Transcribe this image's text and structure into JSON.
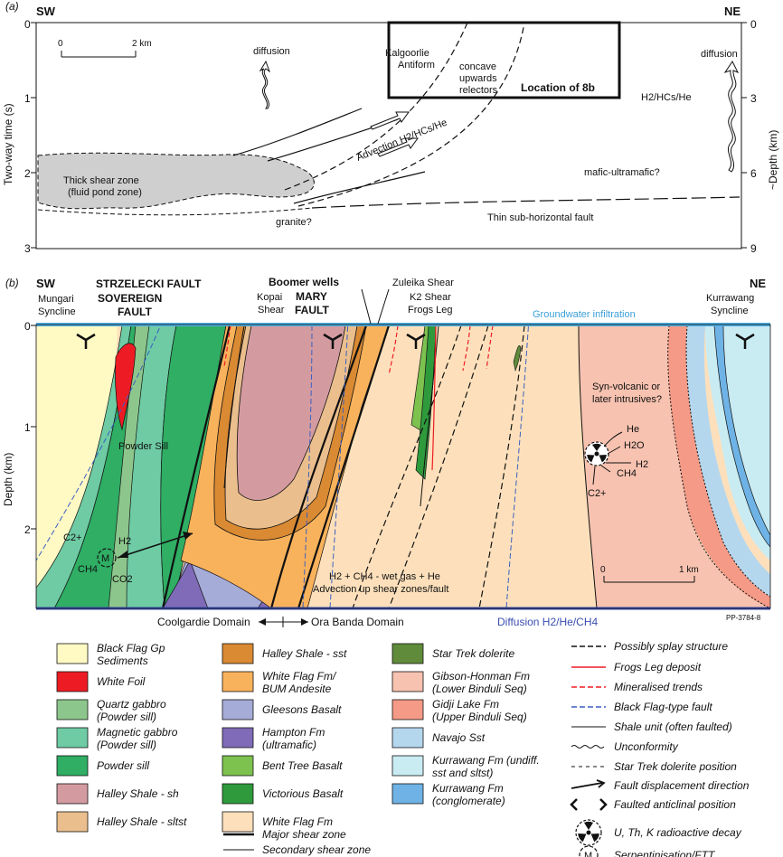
{
  "panel_a": {
    "label": "(a)",
    "sw": "SW",
    "ne": "NE",
    "left_axis_title": "Two-way time (s)",
    "right_axis_title": "~Depth (km)",
    "left_ticks": [
      "0",
      "1",
      "2",
      "3"
    ],
    "right_ticks": [
      "0",
      "3",
      "6",
      "9"
    ],
    "scale_0": "0",
    "scale_2": "2 km",
    "diffusion_left": "diffusion",
    "diffusion_right": "diffusion",
    "gas_right": "H2/HCs/He",
    "antiform_1": "Kalgoorlie",
    "antiform_2": "Antiform",
    "concave_1": "concave",
    "concave_2": "upwards",
    "concave_3": "relectors",
    "location": "Location of 8b",
    "advection": "Advection H2/HCs/He",
    "shear_1": "Thick shear zone",
    "shear_2": "(fluid pond zone)",
    "mafic": "mafic-ultramafic?",
    "granite": "granite?",
    "fault": "Thin sub-horizontal fault"
  },
  "panel_b": {
    "label": "(b)",
    "sw": "SW",
    "ne": "NE",
    "strzelecki": "STRZELECKI FAULT",
    "sovereign_1": "SOVEREIGN",
    "sovereign_2": "FAULT",
    "mungari_1": "Mungari",
    "mungari_2": "Syncline",
    "boomer": "Boomer wells",
    "kopai_1": "Kopai",
    "kopai_2": "Shear",
    "mary_1": "MARY",
    "mary_2": "FAULT",
    "zuleika": "Zuleika Shear",
    "k2": "K2 Shear",
    "frogs": "Frogs Leg",
    "groundwater": "Groundwater infiltration",
    "kurrawang_1": "Kurrawang",
    "kurrawang_2": "Syncline",
    "axis_title": "Depth (km)",
    "ticks": [
      "0",
      "1",
      "2"
    ],
    "powder": "Powder Sill",
    "syn_1": "Syn-volcanic or",
    "syn_2": "later intrusives?",
    "he": "He",
    "h2o": "H2O",
    "h2_right": "H2",
    "ch4_right": "CH4",
    "c2_right": "C2+",
    "c2_left": "C2+",
    "h2_left": "H2",
    "ch4_left": "CH4",
    "co2_left": "CO2",
    "m": "M",
    "wetgas_1": "H2 + CH4 - wet gas + He",
    "wetgas_2": "Advection up shear zones/fault",
    "scale_0": "0",
    "scale_1": "1 km",
    "coolgardie": "Coolgardie Domain",
    "ora": "Ora Banda Domain",
    "diffusion_bottom": "Diffusion H2/He/CH4",
    "pp": "PP-3784-8"
  },
  "legend": {
    "col1": [
      {
        "label1": "Black Flag Gp",
        "label2": "Sediments",
        "color": "#fff9c4"
      },
      {
        "label1": "White Foil",
        "label2": "",
        "color": "#ed1c24"
      },
      {
        "label1": "Quartz gabbro",
        "label2": "(Powder sill)",
        "color": "#8dc68c"
      },
      {
        "label1": "Magnetic gabbro",
        "label2": "(Powder sill)",
        "color": "#6ecba4"
      },
      {
        "label1": "Powder sill",
        "label2": "",
        "color": "#2fae64"
      },
      {
        "label1": "Halley Shale - sh",
        "label2": "",
        "color": "#d39ba0"
      },
      {
        "label1": "Halley Shale - sltst",
        "label2": "",
        "color": "#ebbf8d"
      }
    ],
    "col2": [
      {
        "label1": "Halley Shale - sst",
        "label2": "",
        "color": "#d98a33"
      },
      {
        "label1": "White Flag Fm/",
        "label2": "BUM Andesite",
        "color": "#f9b25c"
      },
      {
        "label1": "Gleesons Basalt",
        "label2": "",
        "color": "#a6acd8"
      },
      {
        "label1": "Hampton Fm",
        "label2": "(ultramafic)",
        "color": "#7f6bb7"
      },
      {
        "label1": "Bent Tree Basalt",
        "label2": "",
        "color": "#7dc24f"
      },
      {
        "label1": "Victorious Basalt",
        "label2": "",
        "color": "#2f9a3c"
      },
      {
        "label1": "White Flag Fm",
        "label2": "",
        "color": "#fde0bb"
      }
    ],
    "col2_lines": [
      {
        "label": "Major shear zone"
      },
      {
        "label": "Secondary shear zone"
      }
    ],
    "col3": [
      {
        "label1": "Star Trek dolerite",
        "label2": "",
        "color": "#5f8b3a"
      },
      {
        "label1": "Gibson-Honman Fm",
        "label2": "(Lower Binduli Seq)",
        "color": "#f7c2b0"
      },
      {
        "label1": "Gidji Lake Fm",
        "label2": "(Upper Binduli Seq)",
        "color": "#f49a86"
      },
      {
        "label1": "Navajo Sst",
        "label2": "",
        "color": "#b5d7ee"
      },
      {
        "label1": "Kurrawang Fm (undiff.",
        "label2": "sst and sltst)",
        "color": "#c9ebf2"
      },
      {
        "label1": "Kurrawang Fm",
        "label2": "(conglomerate)",
        "color": "#6fb3e6"
      }
    ],
    "col4": [
      {
        "label": "Possibly splay structure"
      },
      {
        "label": "Frogs Leg deposit"
      },
      {
        "label": "Mineralised trends"
      },
      {
        "label": "Black Flag-type fault"
      },
      {
        "label": "Shale unit (often faulted)"
      },
      {
        "label": "Unconformity"
      },
      {
        "label": "Star Trek dolerite position"
      },
      {
        "label": "Fault displacement direction"
      },
      {
        "label": "Faulted anticlinal position"
      },
      {
        "label": "U, Th, K radioactive decay"
      },
      {
        "label": "Serpentinisation/FTT"
      }
    ]
  }
}
